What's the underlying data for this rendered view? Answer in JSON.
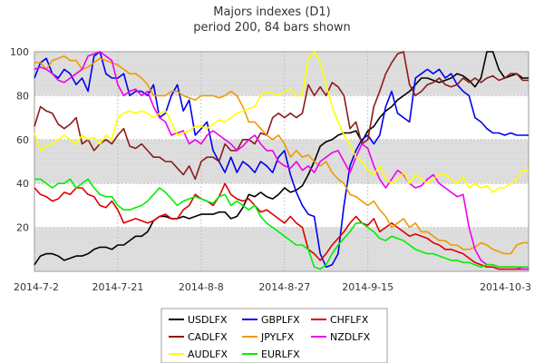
{
  "title": "Majors indexes (D1)",
  "subtitle": "period 200, 84 bars shown",
  "colors": {
    "USDLFX": "#000000",
    "GBPLFX": "#0000ee",
    "CHFLFX": "#dd0000",
    "CADLFX": "#8b1a1a",
    "JPYLFX": "#ee9a00",
    "NZDLFX": "#ee00ee",
    "AUDLFX": "#ffff00",
    "EURLFX": "#00ee00",
    "band": "#e0e0e0",
    "grid": "#bbbbbb"
  },
  "chart_data": {
    "type": "line",
    "title": "Majors indexes (D1)",
    "subtitle": "period 200, 84 bars shown",
    "xlabel": "",
    "ylabel": "",
    "ylim": [
      0,
      100
    ],
    "yticks": [
      20,
      40,
      60,
      80,
      100
    ],
    "xticks": [
      {
        "label": "2014-7-2",
        "index": 0
      },
      {
        "label": "2014-7-21",
        "index": 14
      },
      {
        "label": "2014-8-8",
        "index": 28
      },
      {
        "label": "2014-8-27",
        "index": 42
      },
      {
        "label": "2014-9-15",
        "index": 56
      },
      {
        "label": "2014-10-3",
        "index": 83
      }
    ],
    "grid": true,
    "legend_position": "bottom",
    "n_points": 84,
    "series": [
      {
        "name": "USDLFX",
        "values": [
          3,
          7,
          8,
          8,
          7,
          5,
          6,
          7,
          7,
          8,
          10,
          11,
          11,
          10,
          12,
          12,
          14,
          16,
          16,
          18,
          23,
          25,
          25,
          24,
          24,
          25,
          24,
          25,
          26,
          26,
          26,
          27,
          27,
          24,
          25,
          29,
          35,
          34,
          36,
          34,
          33,
          35,
          38,
          36,
          37,
          39,
          44,
          50,
          57,
          59,
          60,
          62,
          63,
          63,
          64,
          59,
          64,
          66,
          70,
          73,
          75,
          78,
          80,
          82,
          85,
          88,
          88,
          87,
          86,
          87,
          88,
          90,
          89,
          87,
          84,
          88,
          100,
          100,
          92,
          88,
          89,
          90,
          88,
          88
        ]
      },
      {
        "name": "GBPLFX",
        "values": [
          88,
          95,
          97,
          90,
          88,
          92,
          90,
          85,
          88,
          82,
          98,
          100,
          90,
          88,
          88,
          90,
          80,
          82,
          82,
          80,
          85,
          70,
          72,
          80,
          85,
          73,
          78,
          62,
          65,
          68,
          55,
          50,
          45,
          52,
          45,
          50,
          48,
          45,
          50,
          48,
          45,
          52,
          55,
          44,
          36,
          30,
          26,
          25,
          8,
          2,
          3,
          8,
          30,
          48,
          55,
          60,
          62,
          58,
          62,
          75,
          82,
          72,
          70,
          68,
          88,
          90,
          92,
          90,
          92,
          88,
          90,
          85,
          82,
          80,
          70,
          68,
          65,
          63,
          63,
          62,
          63,
          62,
          62,
          62
        ]
      },
      {
        "name": "CHFLFX",
        "values": [
          38,
          35,
          34,
          32,
          33,
          36,
          35,
          38,
          38,
          35,
          34,
          30,
          29,
          32,
          28,
          22,
          23,
          24,
          23,
          22,
          23,
          25,
          26,
          24,
          24,
          28,
          30,
          35,
          33,
          32,
          30,
          34,
          40,
          35,
          33,
          32,
          33,
          30,
          27,
          28,
          26,
          24,
          22,
          25,
          22,
          20,
          10,
          8,
          5,
          8,
          12,
          15,
          18,
          22,
          25,
          22,
          21,
          24,
          18,
          20,
          22,
          20,
          18,
          16,
          17,
          16,
          15,
          13,
          12,
          10,
          10,
          9,
          8,
          6,
          4,
          3,
          2,
          2,
          1,
          1,
          1,
          1,
          1,
          1
        ]
      },
      {
        "name": "CADLFX",
        "values": [
          66,
          75,
          73,
          72,
          67,
          65,
          67,
          70,
          58,
          60,
          55,
          58,
          60,
          58,
          62,
          65,
          57,
          56,
          58,
          55,
          52,
          52,
          50,
          50,
          47,
          44,
          48,
          42,
          50,
          52,
          52,
          50,
          58,
          55,
          55,
          60,
          60,
          58,
          63,
          62,
          70,
          72,
          70,
          72,
          70,
          72,
          85,
          80,
          84,
          80,
          86,
          84,
          80,
          65,
          68,
          58,
          60,
          75,
          82,
          90,
          95,
          99,
          100,
          85,
          80,
          82,
          85,
          86,
          88,
          85,
          84,
          85,
          88,
          86,
          88,
          86,
          88,
          89,
          87,
          88,
          90,
          90,
          87,
          87
        ]
      },
      {
        "name": "JPYLFX",
        "values": [
          95,
          95,
          92,
          96,
          97,
          98,
          96,
          96,
          92,
          93,
          95,
          97,
          96,
          95,
          94,
          92,
          90,
          90,
          88,
          85,
          80,
          80,
          80,
          82,
          82,
          80,
          79,
          78,
          80,
          80,
          80,
          79,
          80,
          82,
          80,
          75,
          68,
          68,
          65,
          62,
          60,
          62,
          58,
          52,
          55,
          52,
          53,
          50,
          48,
          50,
          45,
          42,
          40,
          35,
          34,
          32,
          30,
          32,
          28,
          25,
          20,
          22,
          24,
          20,
          22,
          18,
          18,
          16,
          14,
          14,
          12,
          12,
          10,
          10,
          11,
          13,
          12,
          10,
          9,
          8,
          8,
          12,
          13,
          13
        ]
      },
      {
        "name": "NZDLFX",
        "values": [
          92,
          93,
          92,
          90,
          87,
          86,
          88,
          90,
          92,
          98,
          99,
          100,
          98,
          96,
          85,
          80,
          82,
          83,
          80,
          82,
          75,
          70,
          68,
          62,
          63,
          64,
          58,
          60,
          58,
          62,
          64,
          62,
          60,
          58,
          55,
          57,
          60,
          62,
          58,
          55,
          55,
          50,
          48,
          47,
          50,
          46,
          48,
          45,
          50,
          52,
          54,
          55,
          50,
          45,
          52,
          58,
          56,
          48,
          42,
          38,
          42,
          46,
          44,
          40,
          38,
          39,
          42,
          44,
          40,
          38,
          36,
          34,
          35,
          20,
          10,
          5,
          3,
          3,
          2,
          2,
          2,
          2,
          1,
          1
        ]
      },
      {
        "name": "AUDLFX",
        "values": [
          63,
          55,
          57,
          58,
          60,
          62,
          60,
          58,
          62,
          60,
          61,
          58,
          62,
          60,
          70,
          72,
          73,
          72,
          73,
          72,
          70,
          72,
          73,
          68,
          62,
          63,
          64,
          66,
          66,
          65,
          67,
          69,
          68,
          70,
          72,
          73,
          74,
          75,
          80,
          82,
          81,
          80,
          82,
          83,
          80,
          80,
          97,
          100,
          95,
          85,
          75,
          68,
          62,
          58,
          52,
          50,
          46,
          44,
          48,
          42,
          40,
          42,
          45,
          40,
          44,
          42,
          40,
          42,
          44,
          44,
          42,
          40,
          43,
          38,
          40,
          38,
          39,
          36,
          38,
          38,
          40,
          42,
          46,
          46
        ]
      },
      {
        "name": "EURLFX",
        "values": [
          42,
          42,
          40,
          38,
          40,
          40,
          42,
          38,
          40,
          42,
          38,
          35,
          34,
          34,
          30,
          28,
          28,
          29,
          30,
          32,
          35,
          38,
          36,
          33,
          30,
          32,
          33,
          34,
          33,
          32,
          31,
          34,
          35,
          30,
          32,
          30,
          28,
          30,
          25,
          22,
          20,
          18,
          16,
          14,
          12,
          12,
          10,
          2,
          1,
          3,
          8,
          12,
          15,
          18,
          22,
          22,
          20,
          18,
          15,
          14,
          16,
          15,
          14,
          12,
          10,
          9,
          8,
          8,
          7,
          6,
          5,
          5,
          4,
          4,
          3,
          2,
          3,
          3,
          2,
          2,
          2,
          2,
          2,
          2
        ]
      }
    ],
    "legend": [
      [
        "USDLFX",
        "GBPLFX",
        "CHFLFX"
      ],
      [
        "CADLFX",
        "JPYLFX",
        "NZDLFX"
      ],
      [
        "AUDLFX",
        "EURLFX"
      ]
    ]
  }
}
